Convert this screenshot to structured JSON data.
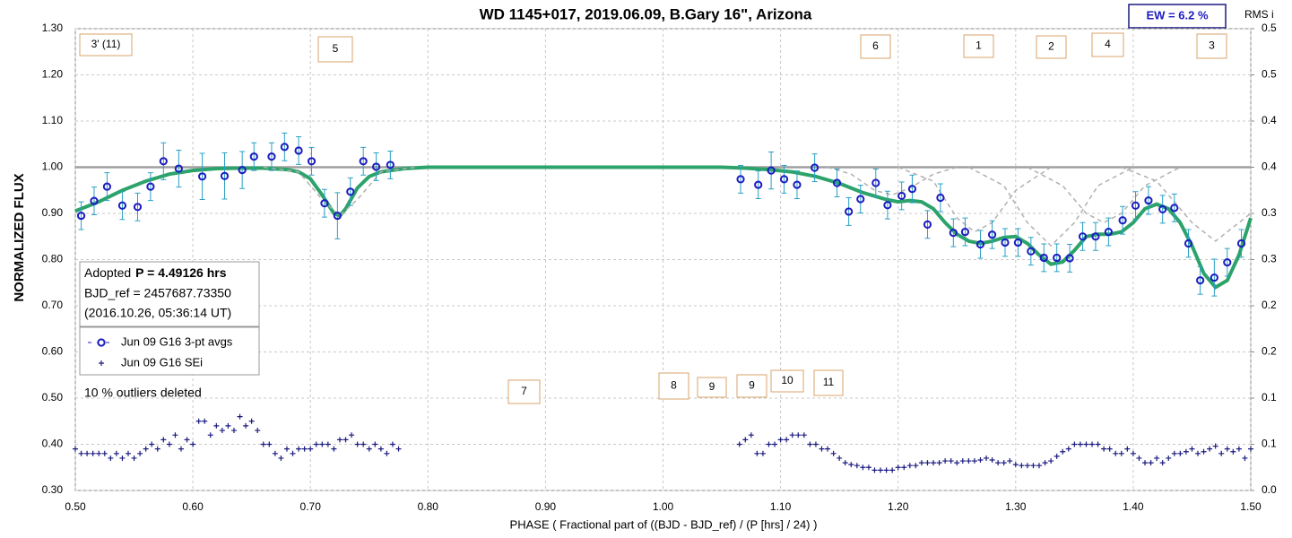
{
  "chart_data": {
    "type": "scatter",
    "title": "WD 1145+017, 2019.06.09, B.Gary 16\", Arizona",
    "x_label": "PHASE ( Fractional part of ((BJD - BJD_ref) / (P [hrs] / 24) )",
    "y_label": "NORMALIZED FLUX",
    "y2_label": "RMS i",
    "xlim": [
      0.5,
      1.5
    ],
    "xticks": [
      {
        "value": 0.5,
        "label": "0.50"
      },
      {
        "value": 0.6,
        "label": "0.60"
      },
      {
        "value": 0.7,
        "label": "0.70"
      },
      {
        "value": 0.8,
        "label": "0.80"
      },
      {
        "value": 0.9,
        "label": "0.90"
      },
      {
        "value": 1.0,
        "label": "1.00"
      },
      {
        "value": 1.1,
        "label": "1.10"
      },
      {
        "value": 1.2,
        "label": "1.20"
      },
      {
        "value": 1.3,
        "label": "1.30"
      },
      {
        "value": 1.4,
        "label": "1.40"
      },
      {
        "value": 1.5,
        "label": "1.50"
      }
    ],
    "ylim": [
      0.3,
      1.3
    ],
    "yticks": [
      {
        "value": 0.3,
        "label": "0.30"
      },
      {
        "value": 0.4,
        "label": "0.40"
      },
      {
        "value": 0.5,
        "label": "0.50"
      },
      {
        "value": 0.6,
        "label": "0.60"
      },
      {
        "value": 0.7,
        "label": "0.70"
      },
      {
        "value": 0.8,
        "label": "0.80"
      },
      {
        "value": 0.9,
        "label": "0.90"
      },
      {
        "value": 1.0,
        "label": "1.00"
      },
      {
        "value": 1.1,
        "label": "1.10"
      },
      {
        "value": 1.2,
        "label": "1.20"
      },
      {
        "value": 1.3,
        "label": "1.30"
      }
    ],
    "y2lim": [
      0,
      0.5
    ],
    "y2ticks": [
      {
        "value": 0,
        "label": "0.0"
      },
      {
        "value": 0.05,
        "label": "0.1"
      },
      {
        "value": 0.1,
        "label": "0.1"
      },
      {
        "value": 0.15,
        "label": "0.2"
      },
      {
        "value": 0.2,
        "label": "0.2"
      },
      {
        "value": 0.25,
        "label": "0.3"
      },
      {
        "value": 0.3,
        "label": "0.3"
      },
      {
        "value": 0.35,
        "label": "0.4"
      },
      {
        "value": 0.4,
        "label": "0.4"
      },
      {
        "value": 0.45,
        "label": "0.5"
      },
      {
        "value": 0.5,
        "label": "0.5"
      }
    ],
    "grid": true,
    "reference_line": 1.0,
    "series": [
      {
        "name": "Jun 09 G16 3-pt avgs",
        "color": "#1c1cc0",
        "error_color": "#2aa0c4",
        "marker": "circle",
        "x": [
          0.505,
          0.516,
          0.527,
          0.54,
          0.553,
          0.564,
          0.575,
          0.588,
          0.608,
          0.627,
          0.642,
          0.652,
          0.667,
          0.678,
          0.69,
          0.701,
          0.712,
          0.723,
          0.734,
          0.745,
          0.756,
          0.768,
          1.066,
          1.081,
          1.092,
          1.103,
          1.114,
          1.129,
          1.148,
          1.158,
          1.168,
          1.181,
          1.191,
          1.203,
          1.212,
          1.225,
          1.236,
          1.247,
          1.257,
          1.27,
          1.28,
          1.291,
          1.302,
          1.313,
          1.324,
          1.335,
          1.346,
          1.357,
          1.368,
          1.379,
          1.391,
          1.402,
          1.413,
          1.425,
          1.435,
          1.447,
          1.457,
          1.469,
          1.48,
          1.492
        ],
        "values": [
          0.895,
          0.927,
          0.958,
          0.917,
          0.914,
          0.958,
          1.013,
          0.997,
          0.98,
          0.981,
          0.994,
          1.023,
          1.023,
          1.044,
          1.036,
          1.013,
          0.922,
          0.895,
          0.947,
          1.013,
          1.001,
          1.005,
          0.974,
          0.962,
          0.993,
          0.974,
          0.962,
          0.999,
          0.966,
          0.904,
          0.931,
          0.966,
          0.918,
          0.938,
          0.953,
          0.876,
          0.934,
          0.858,
          0.86,
          0.833,
          0.854,
          0.837,
          0.837,
          0.818,
          0.804,
          0.804,
          0.803,
          0.85,
          0.85,
          0.86,
          0.885,
          0.917,
          0.928,
          0.909,
          0.912,
          0.835,
          0.755,
          0.761,
          0.794,
          0.835
        ],
        "errors": [
          0.03,
          0.03,
          0.03,
          0.03,
          0.03,
          0.03,
          0.04,
          0.04,
          0.05,
          0.05,
          0.04,
          0.03,
          0.03,
          0.03,
          0.03,
          0.03,
          0.03,
          0.05,
          0.03,
          0.03,
          0.03,
          0.03,
          0.03,
          0.03,
          0.04,
          0.03,
          0.03,
          0.03,
          0.03,
          0.03,
          0.03,
          0.03,
          0.03,
          0.03,
          0.03,
          0.03,
          0.03,
          0.03,
          0.03,
          0.03,
          0.03,
          0.03,
          0.03,
          0.03,
          0.03,
          0.03,
          0.03,
          0.03,
          0.03,
          0.03,
          0.03,
          0.03,
          0.03,
          0.03,
          0.03,
          0.03,
          0.03,
          0.04,
          0.03,
          0.03
        ]
      },
      {
        "name": "Jun 09 G16 SEi",
        "color": "#1a1a80",
        "marker": "plus",
        "axis": "y2",
        "x": [
          0.5,
          0.505,
          0.51,
          0.515,
          0.52,
          0.525,
          0.53,
          0.535,
          0.54,
          0.545,
          0.55,
          0.555,
          0.56,
          0.565,
          0.57,
          0.575,
          0.58,
          0.585,
          0.59,
          0.595,
          0.6,
          0.605,
          0.61,
          0.615,
          0.62,
          0.625,
          0.63,
          0.635,
          0.64,
          0.645,
          0.65,
          0.655,
          0.66,
          0.665,
          0.67,
          0.675,
          0.68,
          0.685,
          0.69,
          0.695,
          0.7,
          0.705,
          0.71,
          0.715,
          0.72,
          0.725,
          0.73,
          0.735,
          0.74,
          0.745,
          0.75,
          0.755,
          0.76,
          0.765,
          0.77,
          0.775,
          1.065,
          1.07,
          1.075,
          1.08,
          1.085,
          1.09,
          1.095,
          1.1,
          1.105,
          1.11,
          1.115,
          1.12,
          1.125,
          1.13,
          1.135,
          1.14,
          1.145,
          1.15,
          1.155,
          1.16,
          1.165,
          1.17,
          1.175,
          1.18,
          1.185,
          1.19,
          1.195,
          1.2,
          1.205,
          1.21,
          1.215,
          1.22,
          1.225,
          1.23,
          1.235,
          1.24,
          1.245,
          1.25,
          1.255,
          1.26,
          1.265,
          1.27,
          1.275,
          1.28,
          1.285,
          1.29,
          1.295,
          1.3,
          1.305,
          1.31,
          1.315,
          1.32,
          1.325,
          1.33,
          1.335,
          1.34,
          1.345,
          1.35,
          1.355,
          1.36,
          1.365,
          1.37,
          1.375,
          1.38,
          1.385,
          1.39,
          1.395,
          1.4,
          1.405,
          1.41,
          1.415,
          1.42,
          1.425,
          1.43,
          1.435,
          1.44,
          1.445,
          1.45,
          1.455,
          1.46,
          1.465,
          1.47,
          1.475,
          1.48,
          1.485,
          1.49,
          1.495,
          1.5
        ],
        "values": [
          0.045,
          0.04,
          0.04,
          0.04,
          0.04,
          0.04,
          0.035,
          0.04,
          0.035,
          0.04,
          0.035,
          0.04,
          0.045,
          0.05,
          0.045,
          0.055,
          0.05,
          0.06,
          0.045,
          0.055,
          0.05,
          0.075,
          0.075,
          0.06,
          0.07,
          0.065,
          0.07,
          0.065,
          0.08,
          0.07,
          0.075,
          0.065,
          0.05,
          0.05,
          0.04,
          0.035,
          0.045,
          0.04,
          0.045,
          0.045,
          0.045,
          0.05,
          0.05,
          0.05,
          0.045,
          0.055,
          0.055,
          0.06,
          0.05,
          0.05,
          0.045,
          0.05,
          0.045,
          0.04,
          0.05,
          0.045,
          0.05,
          0.055,
          0.06,
          0.04,
          0.04,
          0.05,
          0.05,
          0.055,
          0.055,
          0.06,
          0.06,
          0.06,
          0.05,
          0.05,
          0.045,
          0.045,
          0.04,
          0.035,
          0.03,
          0.028,
          0.027,
          0.025,
          0.025,
          0.022,
          0.022,
          0.022,
          0.022,
          0.025,
          0.025,
          0.027,
          0.027,
          0.03,
          0.03,
          0.03,
          0.03,
          0.032,
          0.032,
          0.03,
          0.032,
          0.032,
          0.032,
          0.033,
          0.035,
          0.033,
          0.03,
          0.03,
          0.032,
          0.028,
          0.027,
          0.027,
          0.027,
          0.027,
          0.03,
          0.032,
          0.037,
          0.042,
          0.045,
          0.05,
          0.05,
          0.05,
          0.05,
          0.05,
          0.045,
          0.045,
          0.04,
          0.04,
          0.045,
          0.04,
          0.035,
          0.03,
          0.03,
          0.035,
          0.03,
          0.035,
          0.04,
          0.04,
          0.042,
          0.045,
          0.04,
          0.042,
          0.045,
          0.048,
          0.04,
          0.045,
          0.042,
          0.045,
          0.035,
          0.045
        ]
      },
      {
        "type": "line",
        "color": "#2ca36b",
        "width": 4,
        "x": [
          0.5,
          0.52,
          0.54,
          0.56,
          0.58,
          0.6,
          0.62,
          0.64,
          0.66,
          0.68,
          0.69,
          0.7,
          0.71,
          0.72,
          0.725,
          0.73,
          0.74,
          0.75,
          0.76,
          0.78,
          0.8,
          1.05,
          1.07,
          1.09,
          1.11,
          1.13,
          1.15,
          1.17,
          1.19,
          1.2,
          1.21,
          1.22,
          1.23,
          1.24,
          1.25,
          1.26,
          1.27,
          1.28,
          1.29,
          1.3,
          1.31,
          1.32,
          1.33,
          1.34,
          1.35,
          1.36,
          1.37,
          1.38,
          1.39,
          1.4,
          1.41,
          1.42,
          1.43,
          1.44,
          1.45,
          1.46,
          1.47,
          1.48,
          1.49,
          1.5
        ],
        "values": [
          0.905,
          0.925,
          0.95,
          0.97,
          0.985,
          0.993,
          0.997,
          0.998,
          0.998,
          0.995,
          0.99,
          0.975,
          0.94,
          0.9,
          0.895,
          0.91,
          0.955,
          0.98,
          0.99,
          0.997,
          1.0,
          1.0,
          0.998,
          0.995,
          0.99,
          0.98,
          0.965,
          0.945,
          0.93,
          0.925,
          0.928,
          0.925,
          0.91,
          0.88,
          0.855,
          0.84,
          0.835,
          0.84,
          0.848,
          0.85,
          0.835,
          0.81,
          0.79,
          0.795,
          0.82,
          0.85,
          0.855,
          0.855,
          0.86,
          0.88,
          0.91,
          0.92,
          0.91,
          0.88,
          0.83,
          0.77,
          0.74,
          0.755,
          0.81,
          0.89
        ]
      },
      {
        "type": "line",
        "color": "#b0b0b0",
        "width": 1.5,
        "dashed": true,
        "x": [
          0.66,
          0.69,
          0.71,
          0.725,
          0.74,
          0.76,
          0.79
        ],
        "values": [
          1.0,
          0.99,
          0.93,
          0.895,
          0.93,
          0.99,
          1.0
        ]
      },
      {
        "type": "line",
        "color": "#b0b0b0",
        "width": 1.5,
        "dashed": true,
        "x": [
          1.14,
          1.16,
          1.18,
          1.195,
          1.21,
          1.23,
          1.25
        ],
        "values": [
          1.0,
          0.985,
          0.95,
          0.94,
          0.955,
          0.985,
          1.0
        ]
      },
      {
        "type": "line",
        "color": "#b0b0b0",
        "width": 1.5,
        "dashed": true,
        "x": [
          1.2,
          1.23,
          1.25,
          1.265,
          1.28,
          1.3,
          1.33
        ],
        "values": [
          1.0,
          0.97,
          0.89,
          0.86,
          0.88,
          0.95,
          1.0
        ]
      },
      {
        "type": "line",
        "color": "#b0b0b0",
        "width": 1.5,
        "dashed": true,
        "x": [
          1.26,
          1.29,
          1.31,
          1.33,
          1.35,
          1.37,
          1.4
        ],
        "values": [
          1.0,
          0.96,
          0.88,
          0.83,
          0.88,
          0.96,
          1.0
        ]
      },
      {
        "type": "line",
        "color": "#b0b0b0",
        "width": 1.5,
        "dashed": true,
        "x": [
          1.31,
          1.34,
          1.36,
          1.375,
          1.39,
          1.41,
          1.44
        ],
        "values": [
          1.0,
          0.96,
          0.9,
          0.88,
          0.9,
          0.96,
          1.0
        ]
      },
      {
        "type": "line",
        "color": "#b0b0b0",
        "width": 1.5,
        "dashed": true,
        "x": [
          1.39,
          1.42,
          1.45,
          1.47,
          1.49,
          1.5
        ],
        "values": [
          1.0,
          0.97,
          0.88,
          0.84,
          0.88,
          0.9
        ]
      }
    ],
    "annotations": [
      "3' (11)",
      "5",
      "6",
      "1",
      "2",
      "4",
      "3",
      "7",
      "8",
      "9",
      "9",
      "10",
      "11"
    ],
    "info": {
      "adopted": "Adopted",
      "period": "P = 4.49126 hrs",
      "bjd_ref": "BJD_ref = 2457687.73350",
      "date": "(2016.10.26, 05:36:14 UT)"
    },
    "note": "10 % outliers deleted",
    "ew_label": "EW =  6.2 %"
  }
}
